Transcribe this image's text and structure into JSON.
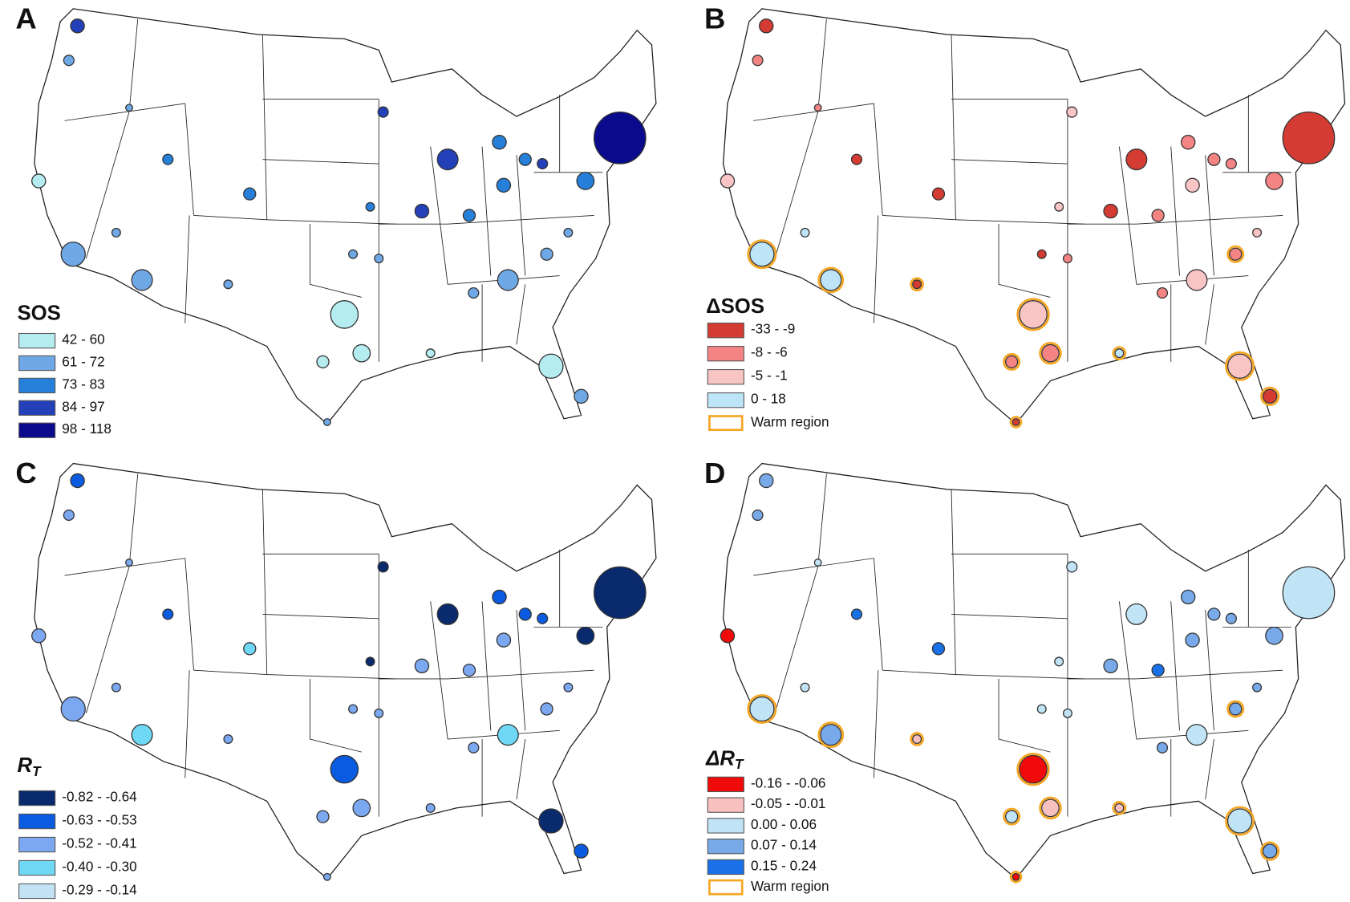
{
  "panels": [
    {
      "label": "A",
      "legend": {
        "title": "SOS",
        "items": [
          {
            "label": "42 - 60",
            "color": "#b4ecf0"
          },
          {
            "label": "61 - 72",
            "color": "#6fa8e6"
          },
          {
            "label": "73 - 83",
            "color": "#2680d9"
          },
          {
            "label": "84 - 97",
            "color": "#2440b8"
          },
          {
            "label": "98 - 118",
            "color": "#0a0a8c"
          }
        ]
      }
    },
    {
      "label": "B",
      "legend": {
        "title": "ΔSOS",
        "items": [
          {
            "label": "-33 - -9",
            "color": "#d43b32"
          },
          {
            "label": "-8 - -6",
            "color": "#f48484"
          },
          {
            "label": "-5 - -1",
            "color": "#f9c4c4"
          },
          {
            "label": "0 - 18",
            "color": "#bde4f7"
          }
        ],
        "warm": {
          "label": "Warm region",
          "color": "#f5a623"
        }
      }
    },
    {
      "label": "C",
      "legend": {
        "title": "R",
        "title_sub": "T",
        "items": [
          {
            "label": "-0.82 - -0.64",
            "color": "#0a2a6e"
          },
          {
            "label": "-0.63 - -0.53",
            "color": "#0a5be0"
          },
          {
            "label": "-0.52 - -0.41",
            "color": "#7ba8f0"
          },
          {
            "label": "-0.40 - -0.30",
            "color": "#6fd8f5"
          },
          {
            "label": "-0.29 - -0.14",
            "color": "#c3e3f5"
          }
        ]
      }
    },
    {
      "label": "D",
      "legend": {
        "title": "ΔR",
        "title_sub": "T",
        "items": [
          {
            "label": "-0.16 - -0.06",
            "color": "#f00a0a"
          },
          {
            "label": "-0.05 - -0.01",
            "color": "#f9c0c0"
          },
          {
            "label": "0.00 - 0.06",
            "color": "#c0e4f5"
          },
          {
            "label": "0.07 - 0.14",
            "color": "#78aaea"
          },
          {
            "label": "0.15 - 0.24",
            "color": "#1a70e6"
          }
        ],
        "warm": {
          "label": "Warm region",
          "color": "#f5a623"
        }
      }
    }
  ]
}
